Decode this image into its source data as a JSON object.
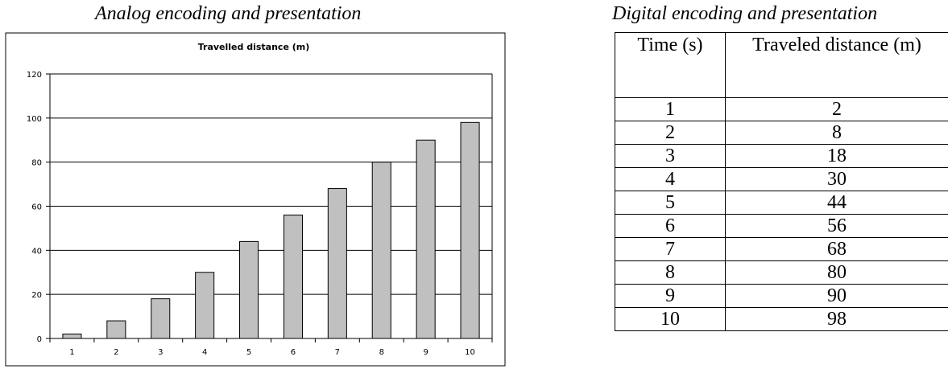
{
  "left_caption": "Analog encoding and presentation",
  "right_caption": "Digital encoding and presentation",
  "chart_data": {
    "type": "bar",
    "title": "Travelled distance (m)",
    "xlabel": "",
    "ylabel": "",
    "categories": [
      "1",
      "2",
      "3",
      "4",
      "5",
      "6",
      "7",
      "8",
      "9",
      "10"
    ],
    "values": [
      2,
      8,
      18,
      30,
      44,
      56,
      68,
      80,
      90,
      98
    ],
    "ylim": [
      0,
      120
    ],
    "yticks": [
      0,
      20,
      40,
      60,
      80,
      100,
      120
    ],
    "grid": true,
    "bar_color": "#c0c0c0"
  },
  "table": {
    "headers": [
      "Time (s)",
      "Traveled distance (m)"
    ],
    "rows": [
      [
        "1",
        "2"
      ],
      [
        "2",
        "8"
      ],
      [
        "3",
        "18"
      ],
      [
        "4",
        "30"
      ],
      [
        "5",
        "44"
      ],
      [
        "6",
        "56"
      ],
      [
        "7",
        "68"
      ],
      [
        "8",
        "80"
      ],
      [
        "9",
        "90"
      ],
      [
        "10",
        "98"
      ]
    ]
  }
}
